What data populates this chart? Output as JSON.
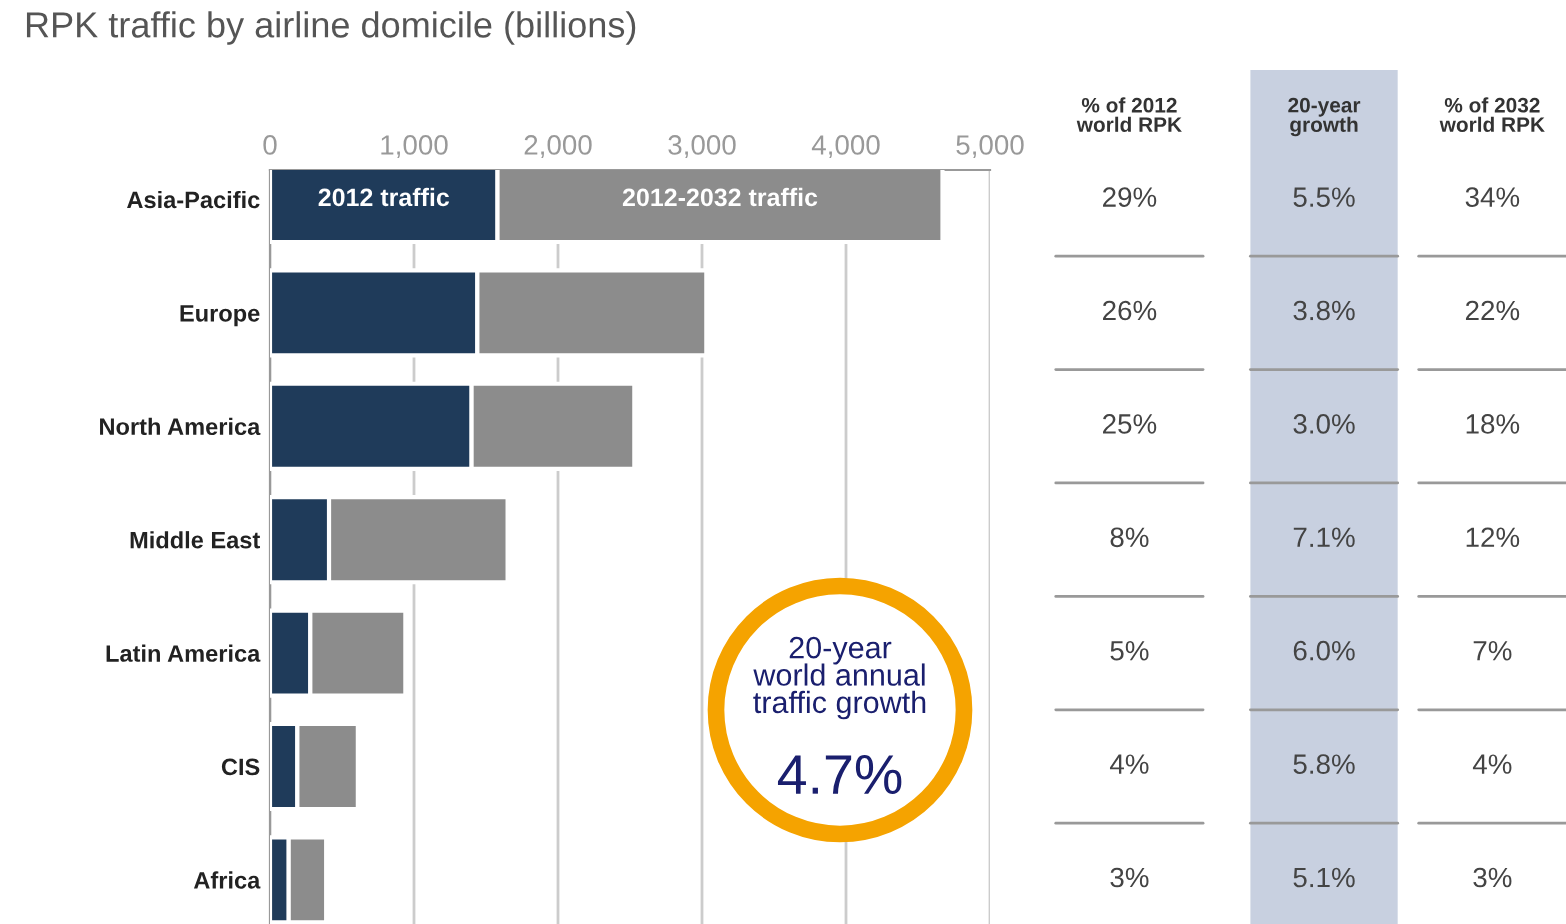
{
  "chart_data": [
    {
      "type": "bar",
      "title": "RPK traffic by airline domicile (billions)",
      "orientation": "horizontal",
      "stacked": true,
      "categories": [
        "Asia-Pacific",
        "Europe",
        "North America",
        "Middle East",
        "Latin America",
        "CIS",
        "Africa"
      ],
      "series": [
        {
          "name": "2012 traffic",
          "color": "#1f3b5a",
          "values": [
            1580,
            1440,
            1400,
            410,
            280,
            190,
            130
          ]
        },
        {
          "name": "2012-2032 traffic",
          "color": "#8c8c8c",
          "values": [
            3090,
            1590,
            1130,
            1240,
            660,
            420,
            260
          ]
        }
      ],
      "xlim": [
        0,
        5000
      ],
      "xticks": [
        {
          "value": 0,
          "label": "0"
        },
        {
          "value": 1000,
          "label": "1,000"
        },
        {
          "value": 2000,
          "label": "2,000"
        },
        {
          "value": 3000,
          "label": "3,000"
        },
        {
          "value": 4000,
          "label": "4,000"
        },
        {
          "value": 5000,
          "label": "5,000"
        }
      ],
      "grid": "x",
      "annotations": [
        "20-year\nworld annual\ntraffic growth\n4.7%"
      ]
    },
    {
      "type": "other",
      "categories": [
        "% of 2012\nworld RPK",
        "20-year\ngrowth",
        "% of 2032\nworld RPK"
      ],
      "annotations": [
        "29%",
        "5.5%",
        "34%",
        "26%",
        "3.8%",
        "22%",
        "25%",
        "3.0%",
        "18%",
        "8%",
        "7.1%",
        "12%",
        "5%",
        "6.0%",
        "7%",
        "4%",
        "5.8%",
        "4%",
        "3%",
        "5.1%",
        "3%"
      ]
    }
  ]
}
